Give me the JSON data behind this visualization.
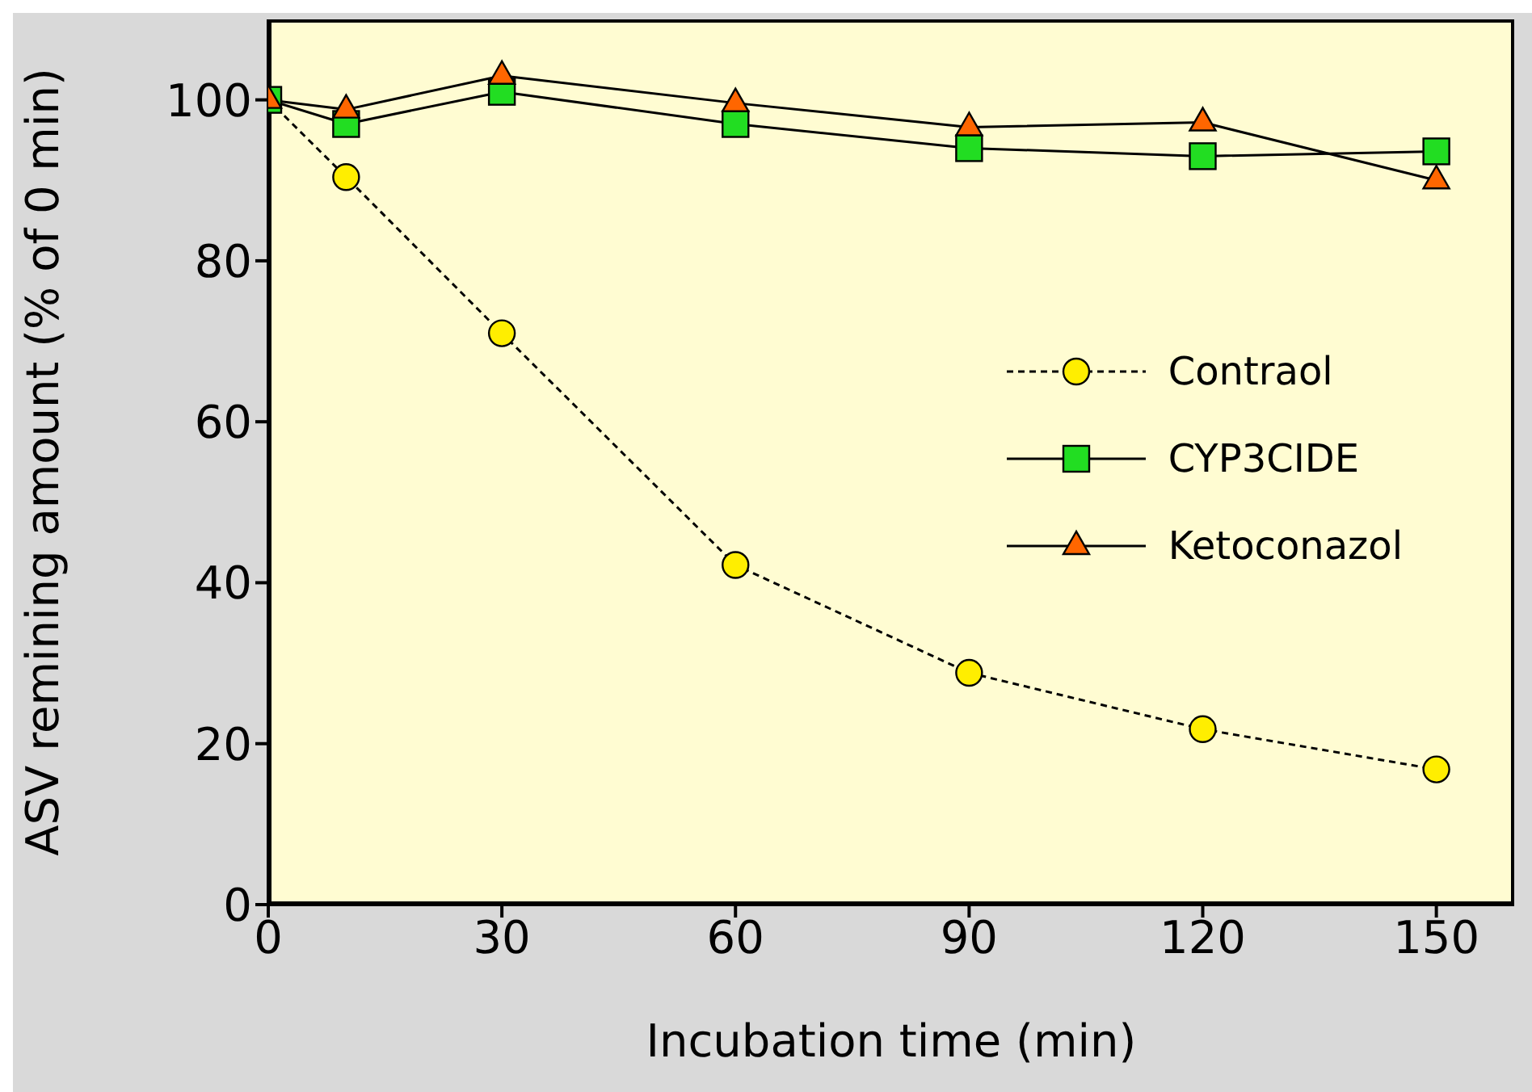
{
  "chart_data": {
    "type": "line",
    "xlabel": "Incubation time (min)",
    "ylabel": "ASV remining amount (% of 0 min)",
    "x": [
      0,
      10,
      30,
      60,
      90,
      120,
      150
    ],
    "xlim": [
      0,
      160
    ],
    "xticks": [
      0,
      30,
      60,
      90,
      120,
      150
    ],
    "ylim": [
      0,
      110
    ],
    "yticks": [
      0,
      20,
      40,
      60,
      80,
      100
    ],
    "grid": false,
    "legend": "right",
    "series": [
      {
        "name": "Contraol",
        "color": "#ffee00",
        "marker": "circle",
        "line_style": "dashed",
        "values": [
          100,
          90.4,
          71,
          42.2,
          28.8,
          21.8,
          16.8
        ]
      },
      {
        "name": "CYP3CIDE",
        "color": "#22dd22",
        "marker": "square",
        "line_style": "solid",
        "values": [
          100,
          97,
          101,
          97,
          94,
          93,
          93.6
        ]
      },
      {
        "name": "Ketoconazol",
        "color": "#ff6600",
        "marker": "triangle",
        "line_style": "solid",
        "values": [
          100,
          98.8,
          103,
          99.6,
          96.6,
          97.2,
          90
        ]
      }
    ]
  }
}
